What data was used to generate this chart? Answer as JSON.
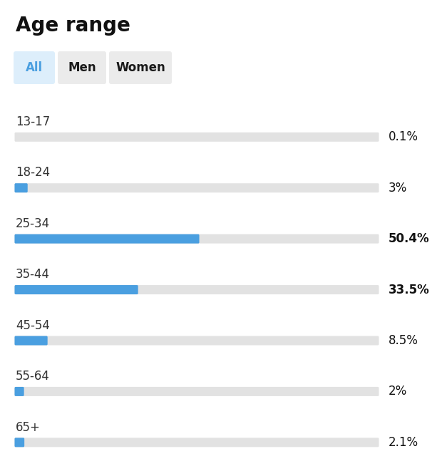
{
  "title": "Age range",
  "categories": [
    "13-17",
    "18-24",
    "25-34",
    "35-44",
    "45-54",
    "55-64",
    "65+"
  ],
  "values": [
    0.1,
    3.0,
    50.4,
    33.5,
    8.5,
    2.0,
    2.1
  ],
  "labels": [
    "0.1%",
    "3%",
    "50.4%",
    "33.5%",
    "8.5%",
    "2%",
    "2.1%"
  ],
  "bar_color": "#4A9FE0",
  "bg_bar_color": "#E2E2E2",
  "background_color": "#FFFFFF",
  "max_value": 100,
  "tab_labels": [
    "All",
    "Men",
    "Women"
  ],
  "tab_active": 0,
  "tab_active_text_color": "#4A9FE0",
  "tab_active_bg_color": "#DDEEFB",
  "tab_inactive_text_color": "#1a1a1a",
  "tab_inactive_bg_color": "#EBEBEB",
  "title_fontsize": 20,
  "category_fontsize": 12,
  "value_fontsize": 12,
  "tab_fontsize": 12,
  "bold_threshold": 25.0
}
